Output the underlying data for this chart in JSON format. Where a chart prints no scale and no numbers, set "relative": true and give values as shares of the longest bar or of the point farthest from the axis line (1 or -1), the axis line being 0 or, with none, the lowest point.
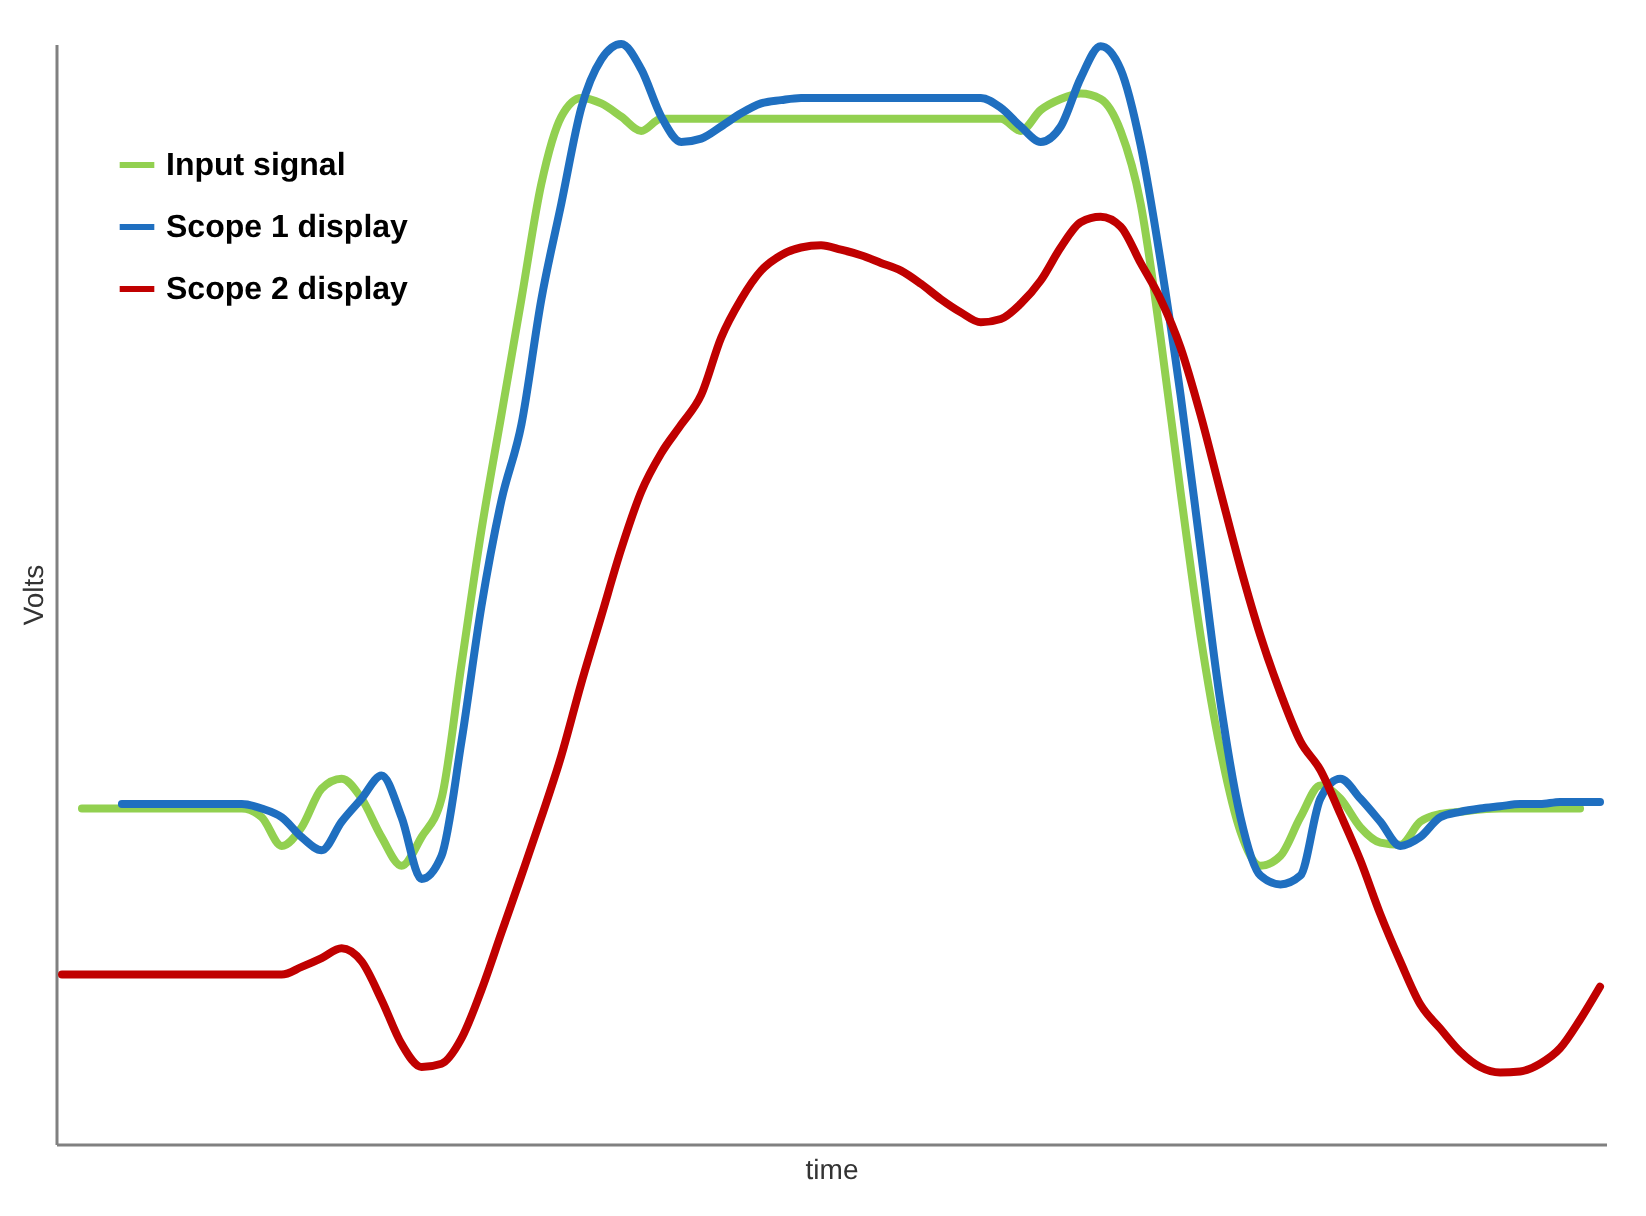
{
  "chart_data": {
    "type": "line",
    "relative": true,
    "xlabel": "time",
    "ylabel": "Volts",
    "grid": false,
    "legend": "top left",
    "categories": [
      null,
      null,
      null,
      null,
      null,
      null,
      null,
      null,
      null,
      null,
      null,
      null,
      null,
      null,
      null,
      null,
      null,
      null,
      null,
      null,
      null,
      null,
      null,
      null,
      null,
      null,
      null,
      null,
      null,
      null,
      null,
      null,
      null,
      null,
      null,
      null,
      null,
      null,
      null,
      null,
      null,
      null,
      null,
      null,
      null,
      null,
      null,
      null,
      null,
      null,
      null,
      null,
      null,
      null,
      null,
      null,
      null,
      null,
      null,
      null,
      null,
      null,
      null,
      null,
      null,
      null,
      null,
      null,
      null,
      null,
      null,
      null,
      null,
      null,
      null,
      null,
      null,
      null
    ],
    "series": [
      {
        "name": "Input signal",
        "color": "#92d050",
        "values": [
          null,
          0.305,
          0.305,
          0.305,
          0.305,
          0.305,
          0.305,
          0.305,
          0.305,
          0.305,
          0.297,
          0.271,
          0.288,
          0.323,
          0.332,
          0.314,
          0.279,
          0.253,
          0.279,
          0.314,
          0.436,
          0.558,
          0.663,
          0.768,
          0.873,
          0.934,
          0.951,
          0.946,
          0.934,
          0.921,
          0.932,
          0.932,
          0.932,
          0.932,
          0.932,
          0.932,
          0.932,
          0.932,
          0.932,
          0.932,
          0.932,
          0.932,
          0.932,
          0.932,
          0.932,
          0.932,
          0.932,
          0.932,
          0.921,
          0.94,
          0.95,
          0.955,
          0.95,
          0.921,
          0.855,
          0.733,
          0.593,
          0.462,
          0.358,
          0.284,
          0.253,
          0.262,
          0.297,
          0.326,
          0.314,
          0.288,
          0.274,
          0.272,
          0.293,
          0.3,
          0.302,
          0.304,
          0.305,
          0.305,
          0.305,
          0.305,
          0.305,
          null
        ]
      },
      {
        "name": "Scope 1 display",
        "color": "#1f6fc0",
        "values": [
          null,
          null,
          null,
          0.309,
          0.309,
          0.309,
          0.309,
          0.309,
          0.309,
          0.309,
          0.305,
          0.297,
          0.279,
          0.267,
          0.293,
          0.314,
          0.335,
          0.297,
          0.241,
          0.262,
          0.366,
          0.489,
          0.585,
          0.654,
          0.768,
          0.855,
          0.942,
          0.986,
          1,
          0.977,
          0.934,
          0.911,
          0.914,
          0.925,
          0.937,
          0.946,
          0.949,
          0.951,
          0.951,
          0.951,
          0.951,
          0.951,
          0.951,
          0.951,
          0.951,
          0.951,
          0.951,
          0.942,
          0.925,
          0.911,
          0.925,
          0.969,
          0.998,
          0.977,
          0.908,
          0.803,
          0.681,
          0.541,
          0.401,
          0.297,
          0.244,
          0.236,
          0.244,
          0.314,
          0.332,
          0.314,
          0.293,
          0.271,
          0.279,
          0.297,
          0.302,
          0.305,
          0.307,
          0.309,
          0.309,
          0.311,
          0.311,
          0.311
        ]
      },
      {
        "name": "Scope 2 display",
        "color": "#c00000",
        "values": [
          0.154,
          0.154,
          0.154,
          0.154,
          0.154,
          0.154,
          0.154,
          0.154,
          0.154,
          0.154,
          0.154,
          0.154,
          0.161,
          0.169,
          0.178,
          0.166,
          0.131,
          0.091,
          0.07,
          0.073,
          0.096,
          0.14,
          0.192,
          0.244,
          0.297,
          0.353,
          0.419,
          0.48,
          0.541,
          0.593,
          0.628,
          0.654,
          0.681,
          0.733,
          0.768,
          0.794,
          0.808,
          0.815,
          0.817,
          0.813,
          0.808,
          0.801,
          0.794,
          0.782,
          0.768,
          0.756,
          0.747,
          0.75,
          0.764,
          0.785,
          0.815,
          0.838,
          0.843,
          0.834,
          0.801,
          0.768,
          0.724,
          0.663,
          0.593,
          0.524,
          0.462,
          0.41,
          0.366,
          0.34,
          0.3,
          0.258,
          0.209,
          0.166,
          0.127,
          0.105,
          0.084,
          0.07,
          0.065,
          0.066,
          0.073,
          0.087,
          0.113,
          0.143
        ]
      }
    ]
  }
}
